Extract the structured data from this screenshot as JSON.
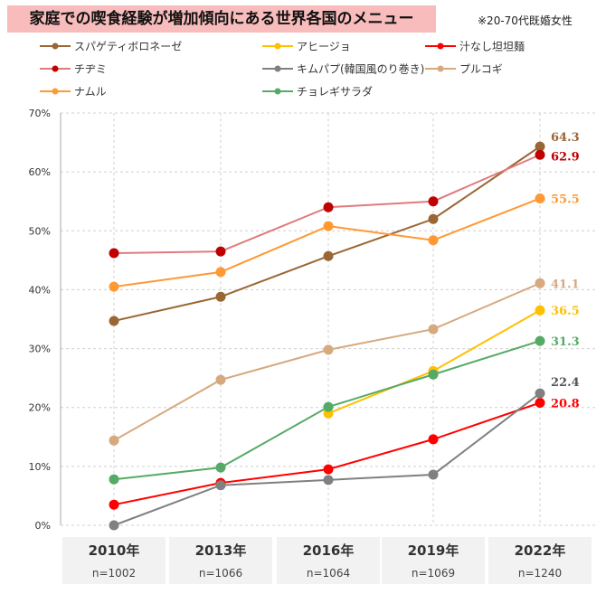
{
  "chart_data": {
    "type": "line",
    "title": "家庭での喫食経験が増加傾向にある世界各国のメニュー",
    "note": "※20-70代既婚女性",
    "categories": [
      "2010年",
      "2013年",
      "2016年",
      "2019年",
      "2022年"
    ],
    "sample_sizes": [
      "n=1002",
      "n=1066",
      "n=1064",
      "n=1069",
      "n=1240"
    ],
    "ylim": [
      0,
      70
    ],
    "yticks": [
      "0%",
      "10%",
      "20%",
      "30%",
      "40%",
      "50%",
      "60%",
      "70%"
    ],
    "grid": true,
    "legend_position": "top",
    "series": [
      {
        "name": "スパゲティボロネーゼ",
        "color": "#9a6633",
        "values": [
          34.7,
          38.8,
          45.7,
          52.0,
          64.3
        ],
        "label": "64.3",
        "label_color": "#9a6633"
      },
      {
        "name": "アヒージョ",
        "color": "#ffc000",
        "values": [
          null,
          null,
          19.0,
          26.2,
          36.5
        ],
        "label": "36.5",
        "label_color": "#ffc000"
      },
      {
        "name": "汁なし坦坦麺",
        "color": "#ff0000",
        "values": [
          3.5,
          7.2,
          9.5,
          14.6,
          20.8
        ],
        "label": "20.8",
        "label_color": "#ff0000"
      },
      {
        "name": "チヂミ",
        "color": "#e07b7b",
        "marker": "#c00000",
        "values": [
          46.2,
          46.5,
          54.0,
          55.0,
          62.9
        ],
        "label": "62.9",
        "label_color": "#c00000"
      },
      {
        "name": "キムパプ(韓国風のり巻き)",
        "color": "#808080",
        "values": [
          0,
          6.8,
          7.7,
          8.6,
          22.4
        ],
        "label": "22.4",
        "label_color": "#555555"
      },
      {
        "name": "プルコギ",
        "color": "#d6a97f",
        "values": [
          14.4,
          24.7,
          29.8,
          33.3,
          41.1
        ],
        "label": "41.1",
        "label_color": "#d6a97f"
      },
      {
        "name": "ナムル",
        "color": "#ff9933",
        "values": [
          40.5,
          43.0,
          50.8,
          48.4,
          55.5
        ],
        "label": "55.5",
        "label_color": "#ff9933"
      },
      {
        "name": "チョレギサラダ",
        "color": "#55aa66",
        "values": [
          7.8,
          9.8,
          20.1,
          25.6,
          31.3
        ],
        "label": "31.3",
        "label_color": "#55aa66"
      }
    ]
  }
}
